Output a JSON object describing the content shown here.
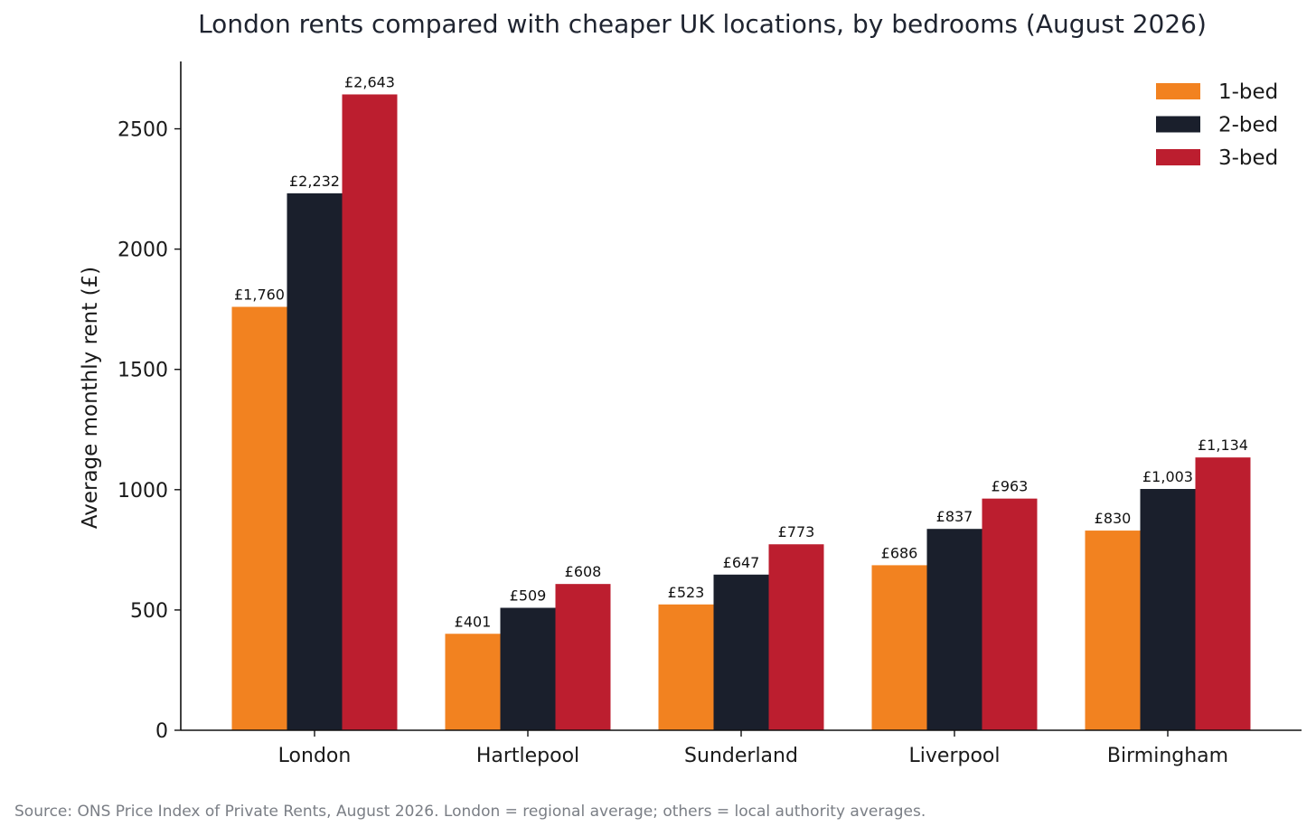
{
  "title": "London rents compared with cheaper UK locations, by bedrooms (August 2026)",
  "source_note": "Source: ONS Price Index of Private Rents, August 2026. London = regional average; others = local authority averages.",
  "chart_data": {
    "type": "bar",
    "title": "London rents compared with cheaper UK locations, by bedrooms (August 2026)",
    "xlabel": "",
    "ylabel": "Average monthly rent (£)",
    "categories": [
      "London",
      "Hartlepool",
      "Sunderland",
      "Liverpool",
      "Birmingham"
    ],
    "series": [
      {
        "name": "1-bed",
        "color": "#f28220",
        "values": [
          1760,
          401,
          523,
          686,
          830
        ],
        "labels": [
          "£1,760",
          "£401",
          "£523",
          "£686",
          "£830"
        ]
      },
      {
        "name": "2-bed",
        "color": "#1a1f2c",
        "values": [
          2232,
          509,
          647,
          837,
          1003
        ],
        "labels": [
          "£2,232",
          "£509",
          "£647",
          "£837",
          "£1,003"
        ]
      },
      {
        "name": "3-bed",
        "color": "#bc1e2f",
        "values": [
          2643,
          608,
          773,
          963,
          1134
        ],
        "labels": [
          "£2,643",
          "£608",
          "£773",
          "£963",
          "£1,134"
        ]
      }
    ],
    "ylim": [
      0,
      2780
    ],
    "yticks": [
      0,
      500,
      1000,
      1500,
      2000,
      2500
    ],
    "grid": false,
    "legend": "top-right"
  }
}
